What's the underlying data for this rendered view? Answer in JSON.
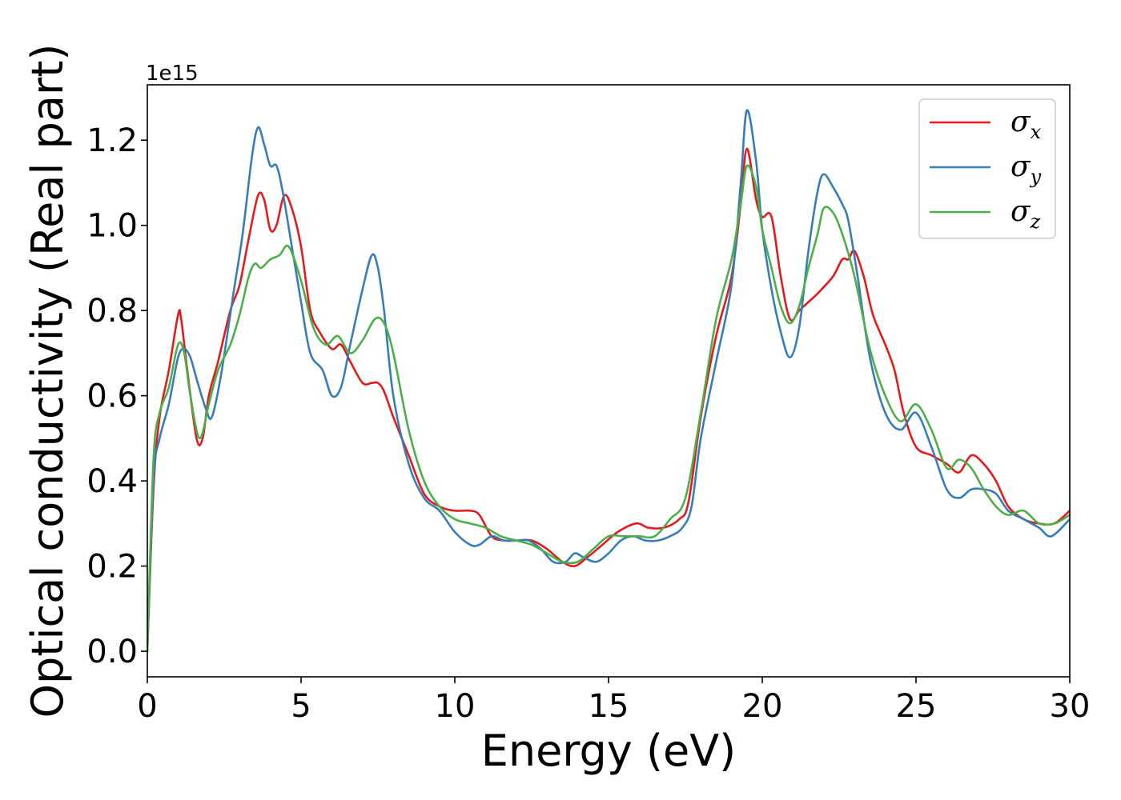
{
  "chart_data": {
    "type": "line",
    "xlabel": "Energy (eV)",
    "ylabel": "Optical conductivity (Real part)",
    "y_offset_label": "1e15",
    "xlim": [
      0,
      30
    ],
    "ylim": [
      -0.06,
      1.33
    ],
    "x_ticks": [
      0,
      5,
      10,
      15,
      20,
      25,
      30
    ],
    "x_tick_labels": [
      "0",
      "5",
      "10",
      "15",
      "20",
      "25",
      "30"
    ],
    "y_ticks": [
      0.0,
      0.2,
      0.4,
      0.6,
      0.8,
      1.0,
      1.2
    ],
    "y_tick_labels": [
      "0.0",
      "0.2",
      "0.4",
      "0.6",
      "0.8",
      "1.0",
      "1.2"
    ],
    "grid": false,
    "legend_position": "top-right",
    "series": [
      {
        "name": "σx",
        "legend_symbol": "σ",
        "legend_subscript": "x",
        "color": "#e41a1c",
        "x": [
          0,
          0.2,
          0.4,
          0.7,
          1.0,
          1.1,
          1.3,
          1.6,
          1.8,
          2.0,
          2.3,
          2.7,
          3.0,
          3.3,
          3.6,
          3.8,
          4.0,
          4.2,
          4.45,
          4.7,
          5.0,
          5.3,
          5.6,
          6.0,
          6.3,
          6.6,
          7.0,
          7.3,
          7.5,
          7.7,
          8.0,
          8.5,
          9.0,
          9.5,
          10.0,
          10.5,
          10.8,
          11.2,
          11.6,
          12.0,
          12.5,
          13.0,
          13.5,
          13.9,
          14.3,
          14.8,
          15.3,
          15.9,
          16.3,
          16.8,
          17.3,
          17.6,
          18.0,
          18.5,
          19.0,
          19.3,
          19.5,
          19.8,
          20.0,
          20.3,
          20.6,
          20.9,
          21.2,
          21.5,
          21.8,
          22.3,
          22.6,
          22.8,
          23.0,
          23.3,
          23.6,
          24.0,
          24.3,
          24.6,
          25.0,
          25.5,
          26.0,
          26.4,
          26.8,
          27.2,
          27.6,
          28.0,
          28.5,
          29.0,
          29.5,
          30.0
        ],
        "values": [
          0.0,
          0.38,
          0.55,
          0.66,
          0.79,
          0.78,
          0.66,
          0.5,
          0.5,
          0.6,
          0.68,
          0.8,
          0.86,
          0.97,
          1.07,
          1.06,
          0.99,
          1.0,
          1.07,
          1.04,
          0.95,
          0.8,
          0.75,
          0.71,
          0.72,
          0.68,
          0.63,
          0.63,
          0.63,
          0.61,
          0.55,
          0.46,
          0.37,
          0.34,
          0.33,
          0.33,
          0.32,
          0.27,
          0.26,
          0.26,
          0.26,
          0.24,
          0.21,
          0.2,
          0.22,
          0.25,
          0.28,
          0.3,
          0.29,
          0.29,
          0.31,
          0.35,
          0.55,
          0.74,
          0.88,
          1.05,
          1.18,
          1.06,
          1.02,
          1.02,
          0.88,
          0.78,
          0.8,
          0.82,
          0.84,
          0.88,
          0.92,
          0.92,
          0.94,
          0.88,
          0.79,
          0.72,
          0.66,
          0.56,
          0.48,
          0.46,
          0.44,
          0.42,
          0.46,
          0.44,
          0.4,
          0.34,
          0.31,
          0.3,
          0.3,
          0.33
        ]
      },
      {
        "name": "σy",
        "legend_symbol": "σ",
        "legend_subscript": "y",
        "color": "#377eb8",
        "x": [
          0,
          0.2,
          0.4,
          0.7,
          1.0,
          1.2,
          1.4,
          1.6,
          1.9,
          2.1,
          2.4,
          2.8,
          3.1,
          3.4,
          3.6,
          3.8,
          4.0,
          4.2,
          4.4,
          4.7,
          5.0,
          5.3,
          5.7,
          6.0,
          6.3,
          6.6,
          7.0,
          7.3,
          7.5,
          7.7,
          8.0,
          8.5,
          9.0,
          9.5,
          10.0,
          10.5,
          10.8,
          11.2,
          11.6,
          12.0,
          12.4,
          12.8,
          13.2,
          13.6,
          13.9,
          14.2,
          14.6,
          15.0,
          15.4,
          15.8,
          16.2,
          16.6,
          17.0,
          17.4,
          17.7,
          18.0,
          18.5,
          19.0,
          19.3,
          19.5,
          19.8,
          20.0,
          20.3,
          20.6,
          20.9,
          21.2,
          21.5,
          21.8,
          22.0,
          22.3,
          22.6,
          22.8,
          23.1,
          23.5,
          24.0,
          24.5,
          25.0,
          25.5,
          26.0,
          26.4,
          26.8,
          27.2,
          27.6,
          28.0,
          28.5,
          29.0,
          29.4,
          30.0
        ],
        "values": [
          0.0,
          0.4,
          0.5,
          0.58,
          0.69,
          0.71,
          0.69,
          0.64,
          0.57,
          0.55,
          0.65,
          0.84,
          0.98,
          1.16,
          1.23,
          1.19,
          1.14,
          1.14,
          1.08,
          0.95,
          0.82,
          0.7,
          0.66,
          0.6,
          0.62,
          0.72,
          0.85,
          0.93,
          0.9,
          0.8,
          0.6,
          0.44,
          0.36,
          0.33,
          0.28,
          0.25,
          0.25,
          0.27,
          0.26,
          0.26,
          0.26,
          0.24,
          0.21,
          0.21,
          0.23,
          0.22,
          0.21,
          0.23,
          0.26,
          0.27,
          0.26,
          0.26,
          0.27,
          0.29,
          0.34,
          0.5,
          0.68,
          0.86,
          1.1,
          1.27,
          1.15,
          0.99,
          0.85,
          0.75,
          0.69,
          0.76,
          0.94,
          1.08,
          1.12,
          1.09,
          1.05,
          1.01,
          0.88,
          0.69,
          0.56,
          0.52,
          0.56,
          0.48,
          0.38,
          0.36,
          0.38,
          0.38,
          0.37,
          0.33,
          0.31,
          0.29,
          0.27,
          0.31
        ]
      },
      {
        "name": "σz",
        "legend_symbol": "σ",
        "legend_subscript": "z",
        "color": "#4daf4a",
        "x": [
          0,
          0.2,
          0.4,
          0.7,
          1.0,
          1.2,
          1.4,
          1.7,
          2.0,
          2.3,
          2.7,
          3.0,
          3.3,
          3.5,
          3.7,
          4.0,
          4.3,
          4.6,
          5.0,
          5.4,
          5.8,
          6.2,
          6.6,
          7.0,
          7.4,
          7.7,
          8.0,
          8.5,
          9.0,
          9.5,
          10.0,
          10.5,
          11.0,
          11.5,
          12.0,
          12.5,
          13.0,
          13.5,
          14.0,
          14.5,
          15.0,
          15.5,
          16.0,
          16.5,
          17.0,
          17.5,
          18.0,
          18.5,
          19.0,
          19.3,
          19.5,
          19.8,
          20.0,
          20.3,
          20.6,
          20.9,
          21.2,
          21.5,
          21.8,
          22.0,
          22.3,
          22.6,
          23.0,
          23.5,
          24.0,
          24.5,
          25.0,
          25.5,
          26.0,
          26.4,
          26.8,
          27.2,
          27.6,
          28.0,
          28.5,
          29.0,
          29.5,
          30.0
        ],
        "values": [
          0.0,
          0.45,
          0.56,
          0.62,
          0.72,
          0.7,
          0.6,
          0.5,
          0.58,
          0.66,
          0.72,
          0.79,
          0.88,
          0.91,
          0.9,
          0.92,
          0.93,
          0.95,
          0.87,
          0.76,
          0.72,
          0.74,
          0.7,
          0.73,
          0.78,
          0.77,
          0.7,
          0.52,
          0.4,
          0.34,
          0.31,
          0.3,
          0.29,
          0.27,
          0.26,
          0.25,
          0.23,
          0.21,
          0.21,
          0.24,
          0.27,
          0.27,
          0.27,
          0.27,
          0.31,
          0.36,
          0.56,
          0.78,
          0.92,
          1.05,
          1.14,
          1.09,
          0.99,
          0.9,
          0.81,
          0.77,
          0.81,
          0.9,
          0.98,
          1.04,
          1.03,
          0.98,
          0.88,
          0.71,
          0.6,
          0.54,
          0.58,
          0.52,
          0.43,
          0.45,
          0.43,
          0.38,
          0.34,
          0.32,
          0.33,
          0.3,
          0.3,
          0.32
        ]
      }
    ]
  }
}
